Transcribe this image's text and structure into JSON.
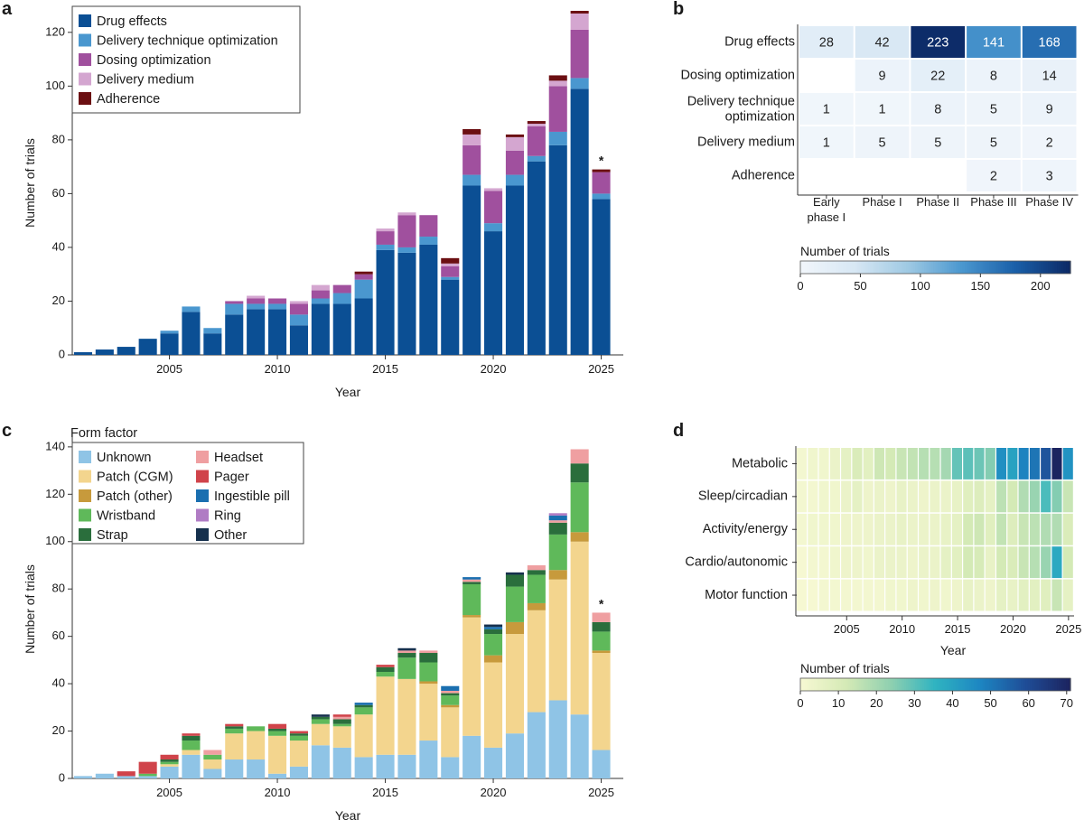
{
  "figure": {
    "colors": {
      "drug": "#0b4f94",
      "technique": "#4a97cf",
      "dosing": "#a0509e",
      "medium": "#d4a6d0",
      "adherence": "#6b0f12",
      "unknown": "#8fc4e6",
      "cgm": "#f3d58e",
      "patch_other": "#c79a3c",
      "wristband": "#5fb95a",
      "strap": "#2a6e3c",
      "headset": "#ef9fa1",
      "pager": "#d0434a",
      "pill": "#1a6fb0",
      "ring": "#b07cc4",
      "other": "#16304d"
    }
  },
  "chart_data": [
    {
      "panel": "a",
      "type": "bar",
      "stacked": true,
      "ylabel": "Number of trials",
      "xlabel": "Year",
      "ylim": [
        0,
        128
      ],
      "yticks": [
        0,
        20,
        40,
        60,
        80,
        100,
        120
      ],
      "xticks": [
        "2005",
        "2010",
        "2015",
        "2020",
        "2025"
      ],
      "x": [
        2001,
        2002,
        2003,
        2004,
        2005,
        2006,
        2007,
        2008,
        2009,
        2010,
        2011,
        2012,
        2013,
        2014,
        2015,
        2016,
        2017,
        2018,
        2019,
        2020,
        2021,
        2022,
        2023,
        2024,
        2025
      ],
      "annotation": "*",
      "legend": [
        "Drug effects",
        "Delivery technique optimization",
        "Dosing optimization",
        "Delivery medium",
        "Adherence"
      ],
      "series": [
        {
          "name": "Drug effects",
          "color_key": "drug",
          "values": [
            1,
            2,
            3,
            6,
            8,
            16,
            8,
            15,
            17,
            17,
            11,
            19,
            19,
            21,
            39,
            38,
            41,
            28,
            63,
            46,
            63,
            72,
            78,
            99,
            58
          ]
        },
        {
          "name": "Delivery technique optimization",
          "color_key": "technique",
          "values": [
            0,
            0,
            0,
            0,
            1,
            2,
            2,
            4,
            2,
            2,
            4,
            2,
            4,
            7,
            2,
            2,
            3,
            1,
            4,
            3,
            4,
            2,
            5,
            4,
            2
          ]
        },
        {
          "name": "Dosing optimization",
          "color_key": "dosing",
          "values": [
            0,
            0,
            0,
            0,
            0,
            0,
            0,
            1,
            2,
            2,
            4,
            3,
            3,
            2,
            5,
            12,
            8,
            4,
            11,
            12,
            9,
            11,
            17,
            18,
            8
          ]
        },
        {
          "name": "Delivery medium",
          "color_key": "medium",
          "values": [
            0,
            0,
            0,
            0,
            0,
            0,
            0,
            0,
            1,
            0,
            1,
            2,
            0,
            0,
            1,
            1,
            0,
            1,
            4,
            1,
            5,
            1,
            2,
            6,
            0
          ]
        },
        {
          "name": "Adherence",
          "color_key": "adherence",
          "values": [
            0,
            0,
            0,
            0,
            0,
            0,
            0,
            0,
            0,
            0,
            0,
            0,
            0,
            1,
            0,
            0,
            0,
            2,
            2,
            0,
            1,
            1,
            2,
            1,
            1
          ]
        }
      ]
    },
    {
      "panel": "b",
      "type": "heatmap",
      "rows": [
        "Drug effects",
        "Dosing optimization",
        "Delivery technique optimization",
        "Delivery medium",
        "Adherence"
      ],
      "cols": [
        "Early phase I",
        "Phase I",
        "Phase II",
        "Phase III",
        "Phase IV"
      ],
      "values": [
        [
          28,
          42,
          223,
          141,
          168
        ],
        [
          null,
          9,
          22,
          8,
          14
        ],
        [
          1,
          1,
          8,
          5,
          9
        ],
        [
          1,
          5,
          5,
          5,
          2
        ],
        [
          null,
          null,
          null,
          2,
          3
        ]
      ],
      "colorbar": {
        "title": "Number of trials",
        "min": 0,
        "max": 225,
        "ticks": [
          0,
          50,
          100,
          150,
          200
        ],
        "palette": [
          "#f1f6fb",
          "#d7e7f4",
          "#9ec9e3",
          "#4a97cf",
          "#1a5fa8",
          "#0c2a66"
        ]
      }
    },
    {
      "panel": "c",
      "type": "bar",
      "stacked": true,
      "ylabel": "Number of trials",
      "xlabel": "Year",
      "ylim": [
        0,
        143
      ],
      "yticks": [
        0,
        20,
        40,
        60,
        80,
        100,
        120,
        140
      ],
      "xticks": [
        "2005",
        "2010",
        "2015",
        "2020",
        "2025"
      ],
      "x": [
        2001,
        2002,
        2003,
        2004,
        2005,
        2006,
        2007,
        2008,
        2009,
        2010,
        2011,
        2012,
        2013,
        2014,
        2015,
        2016,
        2017,
        2018,
        2019,
        2020,
        2021,
        2022,
        2023,
        2024,
        2025
      ],
      "annotation": "*",
      "legend_title": "Form factor",
      "legend": [
        "Unknown",
        "Patch (CGM)",
        "Patch (other)",
        "Wristband",
        "Strap",
        "Headset",
        "Pager",
        "Ingestible pill",
        "Ring",
        "Other"
      ],
      "series": [
        {
          "name": "Unknown",
          "color_key": "unknown",
          "values": [
            1,
            2,
            1,
            1,
            5,
            10,
            4,
            8,
            8,
            2,
            5,
            14,
            13,
            9,
            10,
            10,
            16,
            9,
            18,
            13,
            19,
            28,
            33,
            27,
            12
          ]
        },
        {
          "name": "Patch (CGM)",
          "color_key": "cgm",
          "values": [
            0,
            0,
            0,
            0,
            1,
            2,
            4,
            11,
            12,
            16,
            11,
            9,
            9,
            18,
            33,
            32,
            24,
            21,
            50,
            36,
            42,
            43,
            51,
            73,
            41
          ]
        },
        {
          "name": "Patch (other)",
          "color_key": "patch_other",
          "values": [
            0,
            0,
            0,
            0,
            0,
            0,
            0,
            0,
            0,
            0,
            0,
            0,
            0,
            0,
            0,
            0,
            1,
            1,
            1,
            3,
            5,
            3,
            4,
            4,
            1
          ]
        },
        {
          "name": "Wristband",
          "color_key": "wristband",
          "values": [
            0,
            0,
            0,
            1,
            1,
            4,
            2,
            2,
            2,
            2,
            2,
            2,
            1,
            3,
            2,
            9,
            8,
            4,
            13,
            9,
            15,
            12,
            15,
            21,
            8
          ]
        },
        {
          "name": "Strap",
          "color_key": "strap",
          "values": [
            0,
            0,
            0,
            0,
            1,
            2,
            0,
            1,
            0,
            1,
            1,
            1,
            2,
            1,
            2,
            2,
            4,
            1,
            1,
            2,
            5,
            2,
            5,
            8,
            4
          ]
        },
        {
          "name": "Headset",
          "color_key": "headset",
          "values": [
            0,
            0,
            0,
            0,
            0,
            0,
            2,
            0,
            0,
            0,
            0,
            0,
            1,
            0,
            0,
            1,
            1,
            1,
            1,
            0,
            0,
            2,
            1,
            6,
            4
          ]
        },
        {
          "name": "Pager",
          "color_key": "pager",
          "values": [
            0,
            0,
            2,
            5,
            2,
            1,
            0,
            1,
            0,
            2,
            1,
            0,
            1,
            0,
            1,
            0,
            0,
            0,
            0,
            0,
            0,
            0,
            0,
            0,
            0
          ]
        },
        {
          "name": "Ingestible pill",
          "color_key": "pill",
          "values": [
            0,
            0,
            0,
            0,
            0,
            0,
            0,
            0,
            0,
            0,
            0,
            0,
            0,
            1,
            0,
            0,
            0,
            2,
            1,
            1,
            0,
            0,
            2,
            0,
            0
          ]
        },
        {
          "name": "Ring",
          "color_key": "ring",
          "values": [
            0,
            0,
            0,
            0,
            0,
            0,
            0,
            0,
            0,
            0,
            0,
            0,
            0,
            0,
            0,
            0,
            0,
            0,
            0,
            0,
            0,
            0,
            1,
            0,
            0
          ]
        },
        {
          "name": "Other",
          "color_key": "other",
          "values": [
            0,
            0,
            0,
            0,
            0,
            0,
            0,
            0,
            0,
            0,
            0,
            1,
            0,
            0,
            0,
            1,
            0,
            0,
            0,
            1,
            1,
            0,
            0,
            0,
            0
          ]
        }
      ]
    },
    {
      "panel": "d",
      "type": "heatmap",
      "xlabel": "Year",
      "rows": [
        "Metabolic",
        "Sleep/circadian",
        "Activity/energy",
        "Cardio/autonomic",
        "Motor function"
      ],
      "x": [
        2001,
        2002,
        2003,
        2004,
        2005,
        2006,
        2007,
        2008,
        2009,
        2010,
        2011,
        2012,
        2013,
        2014,
        2015,
        2016,
        2017,
        2018,
        2019,
        2020,
        2021,
        2022,
        2023,
        2024,
        2025
      ],
      "xticks": [
        "2005",
        "2010",
        "2015",
        "2020",
        "2025"
      ],
      "values": [
        [
          1,
          2,
          2,
          4,
          6,
          10,
          7,
          13,
          12,
          14,
          15,
          17,
          17,
          20,
          29,
          30,
          28,
          25,
          45,
          40,
          48,
          51,
          58,
          71,
          44
        ],
        [
          1,
          1,
          2,
          2,
          4,
          6,
          3,
          4,
          3,
          5,
          4,
          3,
          4,
          4,
          5,
          8,
          9,
          6,
          16,
          12,
          18,
          22,
          32,
          25,
          14
        ],
        [
          1,
          2,
          2,
          2,
          3,
          3,
          3,
          4,
          4,
          5,
          4,
          4,
          4,
          5,
          6,
          12,
          13,
          8,
          15,
          9,
          14,
          16,
          18,
          18,
          10
        ],
        [
          0,
          1,
          1,
          2,
          3,
          3,
          2,
          4,
          4,
          4,
          3,
          4,
          4,
          6,
          7,
          12,
          11,
          5,
          12,
          10,
          14,
          17,
          22,
          38,
          12
        ],
        [
          0,
          0,
          1,
          1,
          1,
          1,
          1,
          1,
          2,
          2,
          3,
          2,
          3,
          2,
          3,
          5,
          4,
          3,
          6,
          5,
          7,
          7,
          8,
          14,
          6
        ]
      ],
      "colorbar": {
        "title": "Number of trials",
        "min": 0,
        "max": 71,
        "ticks": [
          0,
          10,
          20,
          30,
          40,
          50,
          60,
          70
        ],
        "palette": [
          "#f6f8d2",
          "#d5eab6",
          "#8fd0b0",
          "#2fb3c1",
          "#1d86c2",
          "#1f4e98",
          "#1c2460"
        ]
      }
    }
  ]
}
